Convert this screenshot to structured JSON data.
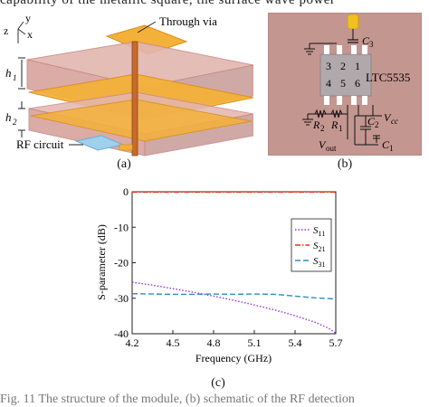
{
  "header_text": "capability of the metallic square, the surface wave power",
  "footer_text": "Fig. 11 The structure of the module, (b) schematic of the RF detection",
  "panel_a": {
    "caption": "(a)",
    "axis_y": "y",
    "axis_x": "x",
    "axis_z": "z",
    "label_through_via": "Through via",
    "label_h1": "h",
    "label_h1_sub": "1",
    "label_h2": "h",
    "label_h2_sub": "2",
    "label_rf_circuit": "RF circuit"
  },
  "panel_b": {
    "caption": "(b)",
    "chip_name": "LTC5535",
    "pins": [
      "1",
      "2",
      "3",
      "4",
      "5",
      "6"
    ],
    "c3": "C",
    "c3_sub": "3",
    "c2": "C",
    "c2_sub": "2",
    "c1": "C",
    "c1_sub": "1",
    "r1": "R",
    "r1_sub": "1",
    "r2": "R",
    "r2_sub": "2",
    "vcc": "V",
    "vcc_sub": "cc",
    "vout": "V",
    "vout_sub": "out",
    "colors": {
      "board": "#c49690",
      "chip": "#b0a8aa",
      "pad": "#ffffff",
      "cap_c3": "#f0c020"
    }
  },
  "panel_c": {
    "caption": "(c)",
    "chart_data": {
      "type": "line",
      "xlabel": "Frequency (GHz)",
      "ylabel": "S-parameter (dB)",
      "xlim": [
        4.2,
        5.7
      ],
      "ylim": [
        -40,
        0
      ],
      "xticks": [
        "4.2",
        "4.5",
        "4.8",
        "5.1",
        "5.4",
        "5.7"
      ],
      "yticks": [
        "0",
        "-10",
        "-20",
        "-30",
        "-40"
      ],
      "xtick_values": [
        4.2,
        4.5,
        4.8,
        5.1,
        5.4,
        5.7
      ],
      "ytick_values": [
        0,
        -10,
        -20,
        -30,
        -40
      ],
      "grid": false,
      "legend_position": "right",
      "series": [
        {
          "name": "S11",
          "name_main": "S",
          "name_sub": "11",
          "color": "#9b30d0",
          "dash": "dot",
          "x": [
            4.2,
            4.35,
            4.5,
            4.65,
            4.8,
            4.95,
            5.1,
            5.25,
            5.4,
            5.55,
            5.65,
            5.7
          ],
          "y": [
            -25.5,
            -26.3,
            -27.3,
            -28.3,
            -29.4,
            -30.6,
            -31.9,
            -33.3,
            -34.9,
            -36.8,
            -38.5,
            -39.8
          ]
        },
        {
          "name": "S21",
          "name_main": "S",
          "name_sub": "21",
          "color": "#e8301c",
          "dash": "dashdot",
          "x": [
            4.2,
            4.5,
            4.8,
            5.1,
            5.4,
            5.7
          ],
          "y": [
            -0.1,
            -0.1,
            -0.1,
            -0.1,
            -0.1,
            -0.1
          ]
        },
        {
          "name": "S31",
          "name_main": "S",
          "name_sub": "31",
          "color": "#2a8ec9",
          "dash": "dash",
          "x": [
            4.2,
            4.35,
            4.5,
            4.65,
            4.8,
            4.95,
            5.1,
            5.25,
            5.4,
            5.55,
            5.7
          ],
          "y": [
            -28.7,
            -28.8,
            -28.9,
            -28.9,
            -28.8,
            -28.9,
            -28.8,
            -28.9,
            -29.4,
            -29.9,
            -30.2
          ]
        }
      ]
    }
  }
}
